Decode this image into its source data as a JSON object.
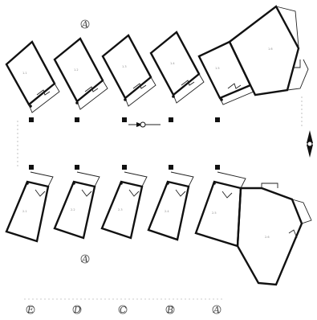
{
  "plan": {
    "grid_labels": {
      "top_A": "A",
      "bottom_A": "A",
      "axis": [
        "E",
        "D",
        "C",
        "B",
        "A"
      ]
    },
    "colors": {
      "ink": "#111111",
      "paper": "#ffffff"
    },
    "icons": [
      "section-marker-icon",
      "north-arrow-icon"
    ]
  }
}
